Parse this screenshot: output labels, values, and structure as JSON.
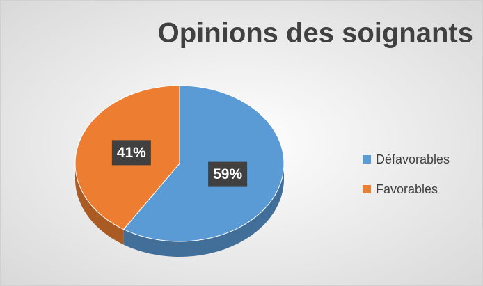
{
  "chart_data": {
    "type": "pie",
    "title": "Opinions des soignants",
    "categories": [
      "Défavorables",
      "Favorables"
    ],
    "values": [
      59,
      41
    ],
    "value_labels": [
      "59%",
      "41%"
    ],
    "colors": [
      "#5b9bd5",
      "#ed7d31"
    ],
    "legend": "right"
  }
}
